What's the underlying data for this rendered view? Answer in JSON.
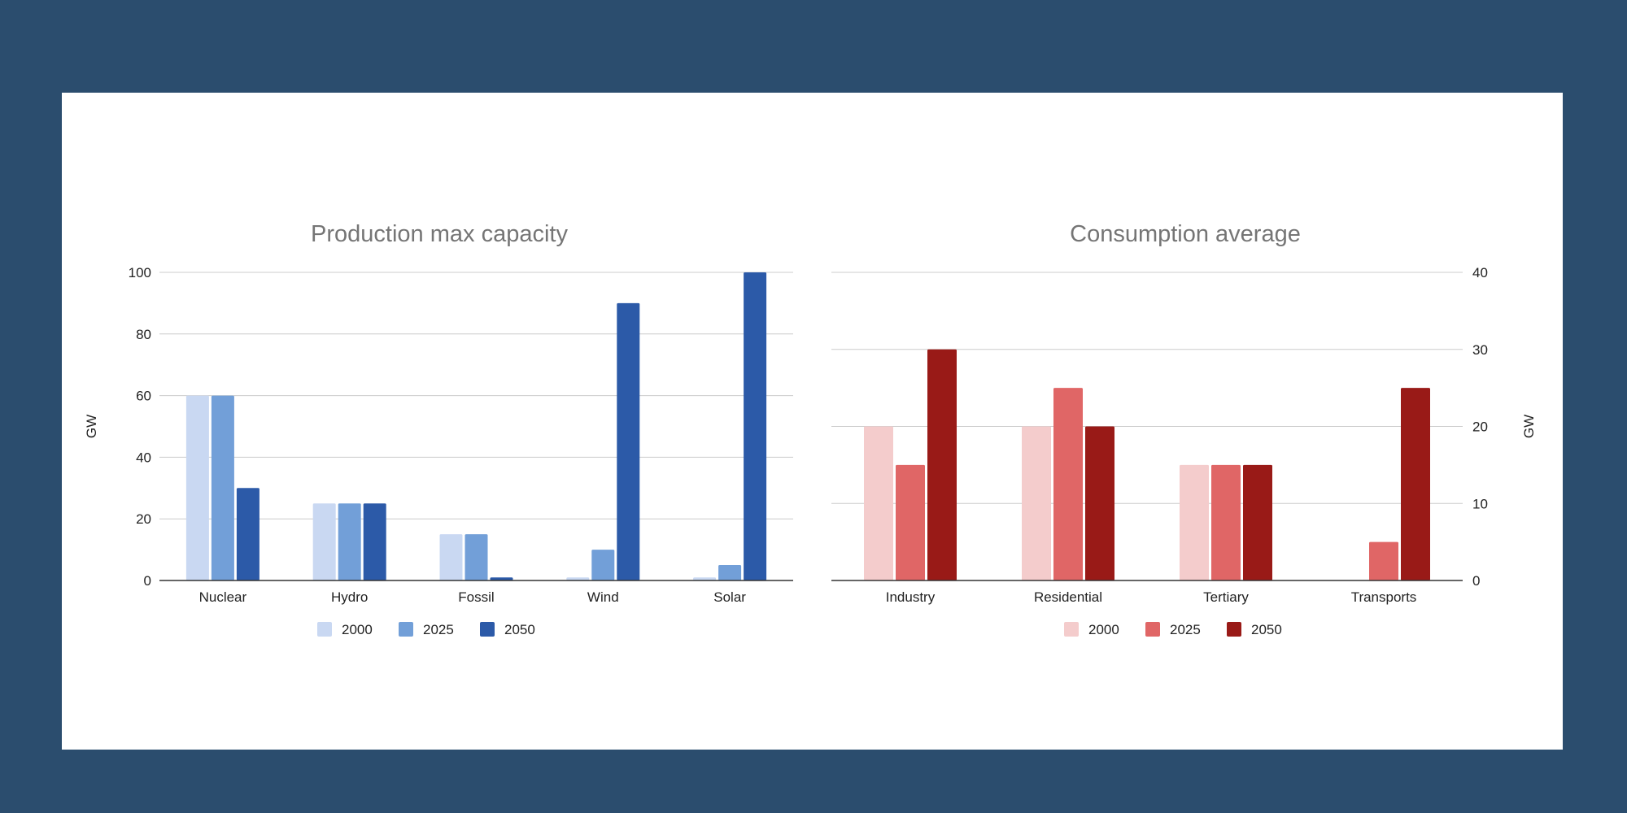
{
  "chart_data": [
    {
      "type": "bar",
      "title": "Production max capacity",
      "xlabel": "",
      "ylabel": "GW",
      "y_axis_side": "left",
      "ylim": [
        0,
        100
      ],
      "yticks": [
        0,
        20,
        40,
        60,
        80,
        100
      ],
      "grid": true,
      "legend_position": "bottom",
      "categories": [
        "Nuclear",
        "Hydro",
        "Fossil",
        "Wind",
        "Solar"
      ],
      "series": [
        {
          "name": "2000",
          "color": "#c9d8f2",
          "values": [
            60,
            25,
            15,
            1,
            1
          ]
        },
        {
          "name": "2025",
          "color": "#729fd8",
          "values": [
            60,
            25,
            15,
            10,
            5
          ]
        },
        {
          "name": "2050",
          "color": "#2c5aa8",
          "values": [
            30,
            25,
            1,
            90,
            100
          ]
        }
      ]
    },
    {
      "type": "bar",
      "title": "Consumption average",
      "xlabel": "",
      "ylabel": "GW",
      "y_axis_side": "right",
      "ylim": [
        0,
        40
      ],
      "yticks": [
        0,
        10,
        20,
        30,
        40
      ],
      "grid": true,
      "legend_position": "bottom",
      "categories": [
        "Industry",
        "Residential",
        "Tertiary",
        "Transports"
      ],
      "series": [
        {
          "name": "2000",
          "color": "#f4cccc",
          "values": [
            20,
            20,
            15,
            0
          ]
        },
        {
          "name": "2025",
          "color": "#e06666",
          "values": [
            15,
            25,
            15,
            5
          ]
        },
        {
          "name": "2050",
          "color": "#991a17",
          "values": [
            30,
            20,
            15,
            25
          ]
        }
      ]
    }
  ]
}
